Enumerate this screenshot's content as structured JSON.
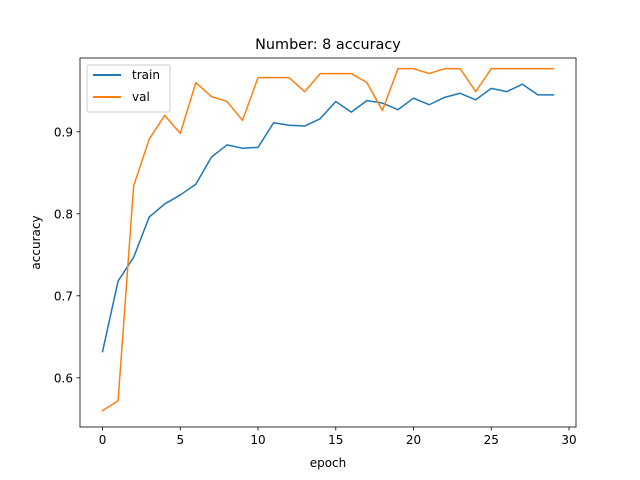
{
  "chart_data": {
    "type": "line",
    "title": "Number: 8 accuracy",
    "xlabel": "epoch",
    "ylabel": "accuracy",
    "xlim": [
      -1.45,
      30.45
    ],
    "ylim": [
      0.54,
      0.99
    ],
    "xticks": [
      0,
      5,
      10,
      15,
      20,
      25,
      30
    ],
    "yticks": [
      0.6,
      0.7,
      0.8,
      0.9
    ],
    "grid": false,
    "legend_position": "top-left",
    "x": [
      0,
      1,
      2,
      3,
      4,
      5,
      6,
      7,
      8,
      9,
      10,
      11,
      12,
      13,
      14,
      15,
      16,
      17,
      18,
      19,
      20,
      21,
      22,
      23,
      24,
      25,
      26,
      27,
      28,
      29
    ],
    "series": [
      {
        "name": "train",
        "color": "#1f77b4",
        "values": [
          0.632,
          0.718,
          0.747,
          0.796,
          0.812,
          0.823,
          0.836,
          0.869,
          0.884,
          0.88,
          0.881,
          0.911,
          0.908,
          0.907,
          0.916,
          0.937,
          0.924,
          0.938,
          0.935,
          0.927,
          0.941,
          0.933,
          0.942,
          0.947,
          0.939,
          0.953,
          0.949,
          0.958,
          0.945,
          0.945
        ]
      },
      {
        "name": "val",
        "color": "#ff7f0e",
        "values": [
          0.56,
          0.572,
          0.834,
          0.891,
          0.92,
          0.898,
          0.96,
          0.943,
          0.937,
          0.914,
          0.966,
          0.966,
          0.966,
          0.949,
          0.971,
          0.971,
          0.971,
          0.96,
          0.926,
          0.977,
          0.977,
          0.971,
          0.977,
          0.977,
          0.949,
          0.977,
          0.977,
          0.977,
          0.977,
          0.977
        ]
      }
    ]
  }
}
